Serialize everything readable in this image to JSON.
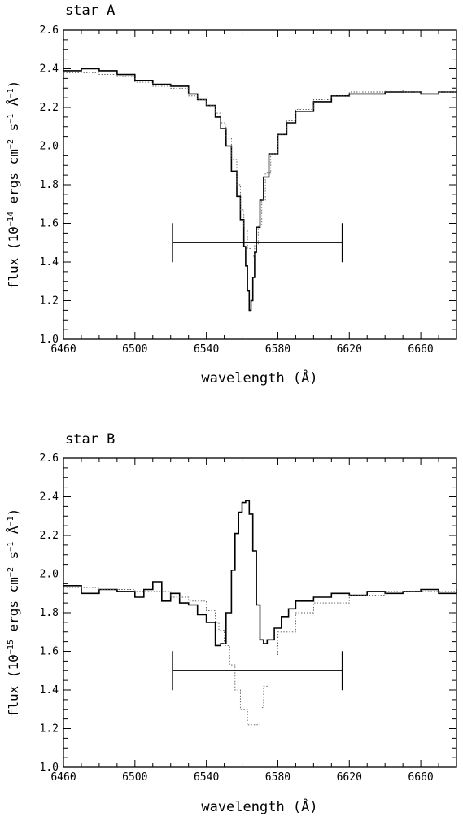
{
  "charts": [
    {
      "title": "star A",
      "ylabel": {
        "prefix": "flux (10",
        "exp": "−14",
        "mid": " ergs cm",
        "exp2": "−2",
        "mid2": " s",
        "exp3": "−1",
        "mid3": " Å",
        "exp4": "−1",
        "suffix": ")"
      },
      "xlabel": "wavelength (Å)",
      "xticks": [
        "6460",
        "6500",
        "6540",
        "6580",
        "6620",
        "6660"
      ],
      "yticks": [
        "1.0",
        "1.2",
        "1.4",
        "1.6",
        "1.8",
        "2.0",
        "2.2",
        "2.4",
        "2.6"
      ]
    },
    {
      "title": "star B",
      "ylabel": {
        "prefix": "flux (10",
        "exp": "−15",
        "mid": " ergs cm",
        "exp2": "−2",
        "mid2": " s",
        "exp3": "−1",
        "mid3": " Å",
        "exp4": "−1",
        "suffix": ")"
      },
      "xlabel": "wavelength (Å)",
      "xticks": [
        "6460",
        "6500",
        "6540",
        "6580",
        "6620",
        "6660"
      ],
      "yticks": [
        "1.0",
        "1.2",
        "1.4",
        "1.6",
        "1.8",
        "2.0",
        "2.2",
        "2.4",
        "2.6"
      ]
    }
  ],
  "chart_data": [
    {
      "type": "line",
      "title": "star A",
      "xlabel": "wavelength (Å)",
      "xlim": [
        6460,
        6680
      ],
      "ylim": [
        1.0,
        2.6
      ],
      "error_bar": {
        "x1": 6521,
        "x2": 6616,
        "y": 1.5
      },
      "series": [
        {
          "style": "solid",
          "x": [
            6460,
            6470,
            6480,
            6490,
            6500,
            6510,
            6520,
            6530,
            6535,
            6540,
            6545,
            6548,
            6551,
            6554,
            6557,
            6559,
            6561,
            6562,
            6563,
            6564,
            6565,
            6566,
            6567,
            6568,
            6570,
            6572,
            6575,
            6580,
            6585,
            6590,
            6600,
            6610,
            6620,
            6630,
            6640,
            6650,
            6660,
            6670,
            6680
          ],
          "y": [
            2.39,
            2.4,
            2.39,
            2.37,
            2.34,
            2.32,
            2.31,
            2.27,
            2.24,
            2.21,
            2.15,
            2.09,
            2.0,
            1.87,
            1.74,
            1.62,
            1.48,
            1.38,
            1.25,
            1.15,
            1.2,
            1.32,
            1.45,
            1.58,
            1.72,
            1.84,
            1.96,
            2.06,
            2.12,
            2.18,
            2.23,
            2.26,
            2.27,
            2.27,
            2.28,
            2.28,
            2.27,
            2.28,
            2.29
          ]
        },
        {
          "style": "dotted",
          "x": [
            6460,
            6470,
            6480,
            6490,
            6500,
            6510,
            6520,
            6530,
            6535,
            6540,
            6545,
            6548,
            6551,
            6554,
            6557,
            6559,
            6561,
            6563,
            6565,
            6567,
            6569,
            6571,
            6573,
            6576,
            6580,
            6585,
            6590,
            6600,
            6610,
            6620,
            6630,
            6640,
            6650,
            6660,
            6670,
            6680
          ],
          "y": [
            2.38,
            2.38,
            2.37,
            2.36,
            2.33,
            2.31,
            2.3,
            2.26,
            2.24,
            2.21,
            2.17,
            2.12,
            2.04,
            1.93,
            1.8,
            1.67,
            1.57,
            1.47,
            1.43,
            1.49,
            1.59,
            1.72,
            1.86,
            1.96,
            2.06,
            2.13,
            2.19,
            2.24,
            2.26,
            2.28,
            2.28,
            2.29,
            2.28,
            2.27,
            2.28,
            2.29
          ]
        }
      ]
    },
    {
      "type": "line",
      "title": "star B",
      "xlabel": "wavelength (Å)",
      "xlim": [
        6460,
        6680
      ],
      "ylim": [
        1.0,
        2.6
      ],
      "error_bar": {
        "x1": 6521,
        "x2": 6616,
        "y": 1.5
      },
      "series": [
        {
          "style": "solid",
          "x": [
            6460,
            6470,
            6480,
            6490,
            6500,
            6505,
            6510,
            6515,
            6520,
            6525,
            6530,
            6535,
            6540,
            6545,
            6548,
            6551,
            6554,
            6556,
            6558,
            6560,
            6562,
            6564,
            6566,
            6568,
            6570,
            6572,
            6574,
            6578,
            6582,
            6586,
            6590,
            6600,
            6610,
            6620,
            6630,
            6640,
            6650,
            6660,
            6670,
            6680
          ],
          "y": [
            1.94,
            1.9,
            1.92,
            1.91,
            1.88,
            1.92,
            1.96,
            1.86,
            1.9,
            1.85,
            1.84,
            1.79,
            1.75,
            1.63,
            1.64,
            1.8,
            2.02,
            2.21,
            2.32,
            2.37,
            2.38,
            2.31,
            2.12,
            1.84,
            1.66,
            1.64,
            1.66,
            1.72,
            1.78,
            1.82,
            1.86,
            1.88,
            1.9,
            1.89,
            1.91,
            1.9,
            1.91,
            1.92,
            1.9,
            1.92
          ]
        },
        {
          "style": "dotted",
          "x": [
            6460,
            6480,
            6500,
            6520,
            6530,
            6540,
            6545,
            6547,
            6550,
            6553,
            6556,
            6559,
            6563,
            6567,
            6570,
            6572,
            6575,
            6580,
            6590,
            6600,
            6620,
            6640,
            6660,
            6680
          ],
          "y": [
            1.93,
            1.92,
            1.91,
            1.88,
            1.86,
            1.81,
            1.75,
            1.71,
            1.63,
            1.53,
            1.4,
            1.3,
            1.22,
            1.22,
            1.31,
            1.42,
            1.57,
            1.7,
            1.8,
            1.85,
            1.89,
            1.91,
            1.91,
            1.92
          ]
        }
      ]
    }
  ]
}
